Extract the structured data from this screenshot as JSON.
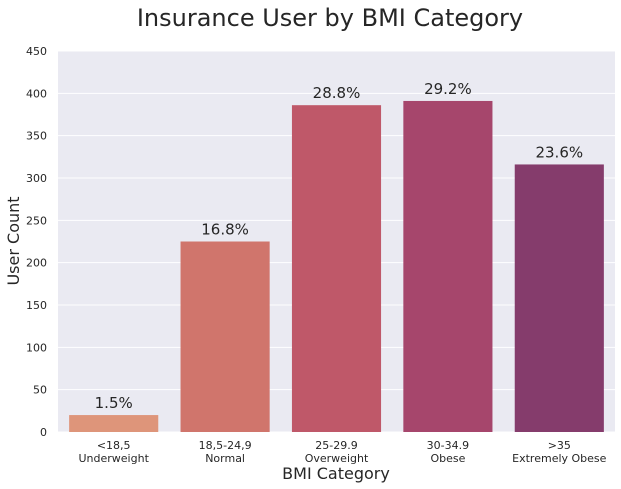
{
  "chart_data": {
    "type": "bar",
    "title": "Insurance User by BMI Category",
    "xlabel": "BMI Category",
    "ylabel": "User Count",
    "ylim": [
      0,
      450
    ],
    "yticks": [
      0,
      50,
      100,
      150,
      200,
      250,
      300,
      350,
      400,
      450
    ],
    "grid": true,
    "categories": [
      [
        "<18,5",
        "Underweight"
      ],
      [
        "18,5-24,9",
        "Normal"
      ],
      [
        "25-29.9",
        "Overweight"
      ],
      [
        "30-34.9",
        "Obese"
      ],
      [
        ">35",
        "Extremely Obese"
      ]
    ],
    "values": [
      20,
      225,
      386,
      391,
      316
    ],
    "data_labels": [
      "1.5%",
      "16.8%",
      "28.8%",
      "29.2%",
      "23.6%"
    ],
    "colors": [
      "#de957a",
      "#d0756c",
      "#bf5869",
      "#a6466c",
      "#853c6c"
    ],
    "background": "#eaeaf2"
  }
}
